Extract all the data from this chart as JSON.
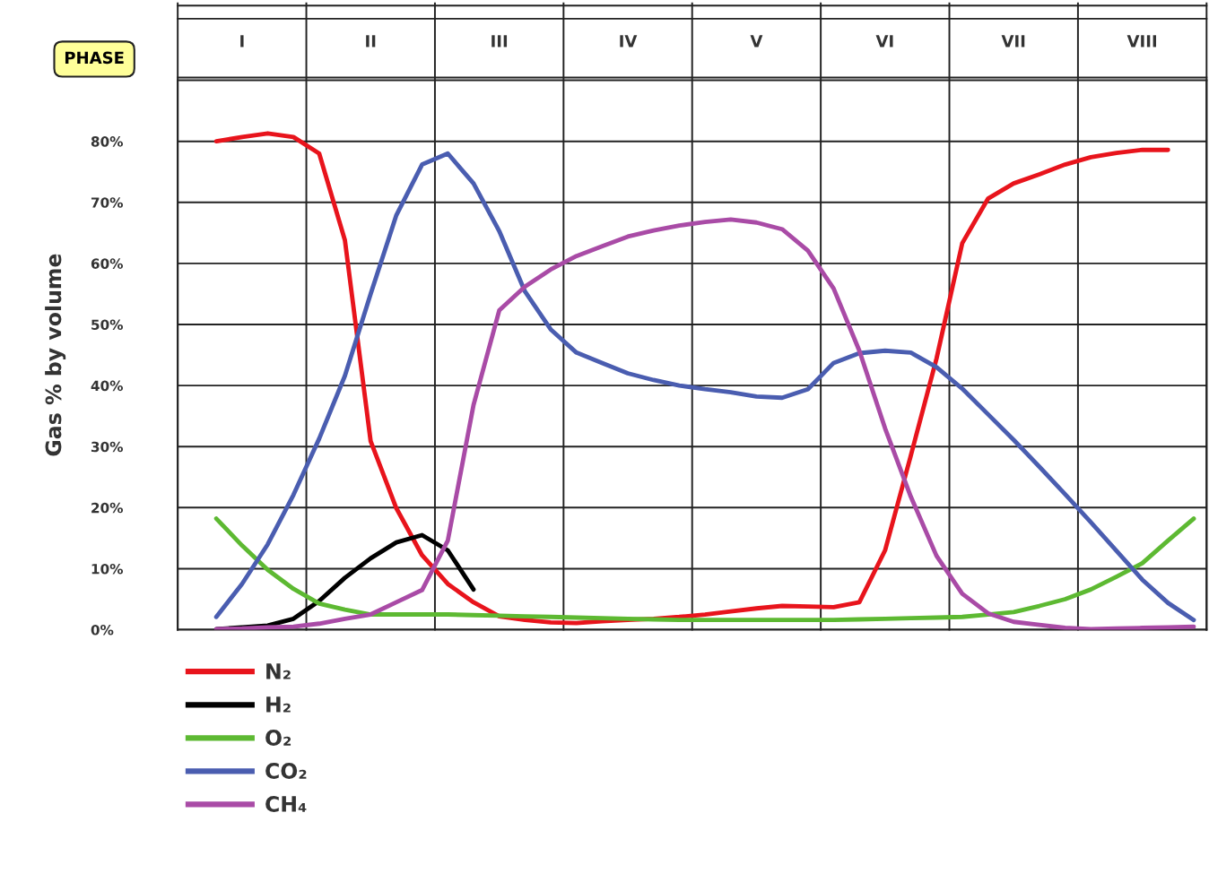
{
  "chart_data": {
    "type": "line",
    "ylabel": "Gas % by volume",
    "annotations": [
      "PHASE"
    ],
    "categories": [
      null,
      null,
      "I",
      null,
      null,
      null,
      null,
      "II",
      null,
      null,
      null,
      null,
      "III",
      null,
      null,
      null,
      null,
      "IV",
      null,
      null,
      null,
      null,
      "V",
      null,
      null,
      null,
      null,
      "VI",
      null,
      null,
      null,
      null,
      "VII",
      null,
      null,
      null,
      null,
      "VIII",
      null,
      null
    ],
    "ylim": [
      0,
      90
    ],
    "yticks": [
      {
        "value": 0,
        "label": "0%"
      },
      {
        "value": 10,
        "label": "10%"
      },
      {
        "value": 20,
        "label": "20%"
      },
      {
        "value": 30,
        "label": "30%"
      },
      {
        "value": 40,
        "label": "40%"
      },
      {
        "value": 50,
        "label": "50%"
      },
      {
        "value": 60,
        "label": "60%"
      },
      {
        "value": 70,
        "label": "70%"
      },
      {
        "value": 80,
        "label": "80%"
      }
    ],
    "grid": "y",
    "legend": "bottom",
    "line_style": "solid",
    "marker": "none",
    "series": [
      {
        "name": "N₂",
        "color": "#e8141c",
        "values": [
          null,
          80.0,
          80.7,
          81.3,
          80.7,
          78,
          63.8,
          30.9,
          19.9,
          12.2,
          7.5,
          4.5,
          2.2,
          1.6,
          1.2,
          1.1,
          1.4,
          1.6,
          1.8,
          2.1,
          2.5,
          3.0,
          3.5,
          3.9,
          3.8,
          3.7,
          4.5,
          13,
          28.5,
          44.4,
          63.3,
          70.6,
          73.1,
          74.6,
          76.2,
          77.4,
          78.1,
          78.6,
          78.6,
          null
        ]
      },
      {
        "name": "H₂",
        "color": "#000000",
        "values": [
          null,
          0.1,
          0.4,
          0.7,
          1.8,
          4.7,
          8.5,
          11.7,
          14.3,
          15.5,
          13,
          6.6,
          null,
          null,
          null,
          null,
          null,
          null,
          null,
          null,
          null,
          null,
          null,
          null,
          null,
          null,
          null,
          null,
          null,
          null,
          null,
          null,
          null,
          null,
          null,
          null,
          null,
          null,
          null,
          null
        ]
      },
      {
        "name": "O₂",
        "color": "#5db932",
        "values": [
          null,
          18.2,
          13.8,
          9.8,
          6.7,
          4.3,
          3.3,
          2.5,
          2.5,
          2.5,
          2.5,
          2.4,
          2.3,
          2.2,
          2.1,
          2.0,
          1.9,
          1.8,
          1.7,
          1.6,
          1.6,
          1.6,
          1.6,
          1.6,
          1.6,
          1.6,
          1.7,
          1.8,
          1.9,
          2.0,
          2.1,
          2.5,
          2.9,
          3.9,
          5.0,
          6.6,
          8.7,
          10.9,
          14.6,
          18.2
        ]
      },
      {
        "name": "CO₂",
        "color": "#4a5db0",
        "values": [
          null,
          2.1,
          7.5,
          14,
          22.1,
          31.3,
          41.6,
          55,
          67.9,
          76.2,
          78,
          73.1,
          65.3,
          55.4,
          49.2,
          45.4,
          43.7,
          42,
          40.9,
          40,
          39.4,
          38.9,
          38.2,
          38,
          39.4,
          43.7,
          45.3,
          45.7,
          45.4,
          43.0,
          39.5,
          35.3,
          31.1,
          26.7,
          22.2,
          17.6,
          12.9,
          8.2,
          4.4,
          1.6
        ]
      },
      {
        "name": "CH₄",
        "color": "#a94ba6",
        "values": [
          null,
          0.1,
          0.2,
          0.4,
          0.5,
          1.0,
          1.8,
          2.5,
          4.5,
          6.5,
          14.6,
          36.8,
          52.3,
          56.2,
          59,
          61.2,
          62.8,
          64.4,
          65.4,
          66.2,
          66.8,
          67.2,
          66.7,
          65.6,
          62.1,
          55.9,
          45.7,
          33.0,
          21.8,
          12.1,
          5.9,
          2.7,
          1.3,
          0.8,
          0.3,
          0.1,
          0.2,
          0.3,
          0.4,
          0.5
        ]
      }
    ]
  }
}
